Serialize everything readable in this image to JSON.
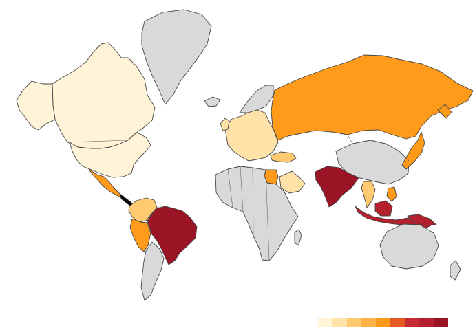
{
  "map": {
    "projection": "mercator",
    "background": "#ffffff",
    "nodata_color": "#d9d9d9",
    "border_color": "#444444"
  },
  "legend": {
    "colors": [
      "#fff4d8",
      "#ffe2a8",
      "#ffca70",
      "#ffb347",
      "#ff9a1a",
      "#e45a20",
      "#c62b33",
      "#b4202d",
      "#9a1426"
    ]
  },
  "regions": [
    {
      "name": "brazil",
      "class": 9
    },
    {
      "name": "india",
      "class": 9
    },
    {
      "name": "indonesia",
      "class": 8
    },
    {
      "name": "russia",
      "class": 5
    },
    {
      "name": "japan",
      "class": 5
    },
    {
      "name": "mexico",
      "class": 5
    },
    {
      "name": "egypt",
      "class": 5
    },
    {
      "name": "peru",
      "class": 5
    },
    {
      "name": "canada",
      "class": 1
    },
    {
      "name": "united-states",
      "class": 1
    },
    {
      "name": "alaska",
      "class": 1
    },
    {
      "name": "colombia",
      "class": 3
    },
    {
      "name": "saudi-arabia",
      "class": 2
    },
    {
      "name": "thailand",
      "class": 3
    },
    {
      "name": "philippines",
      "class": 5
    },
    {
      "name": "turkey",
      "class": 3
    },
    {
      "name": "europe",
      "class": 2
    },
    {
      "name": "greenland",
      "class": 0
    },
    {
      "name": "australia",
      "class": 0
    },
    {
      "name": "africa",
      "class": 0
    },
    {
      "name": "china",
      "class": 0
    },
    {
      "name": "argentina",
      "class": 0
    }
  ]
}
